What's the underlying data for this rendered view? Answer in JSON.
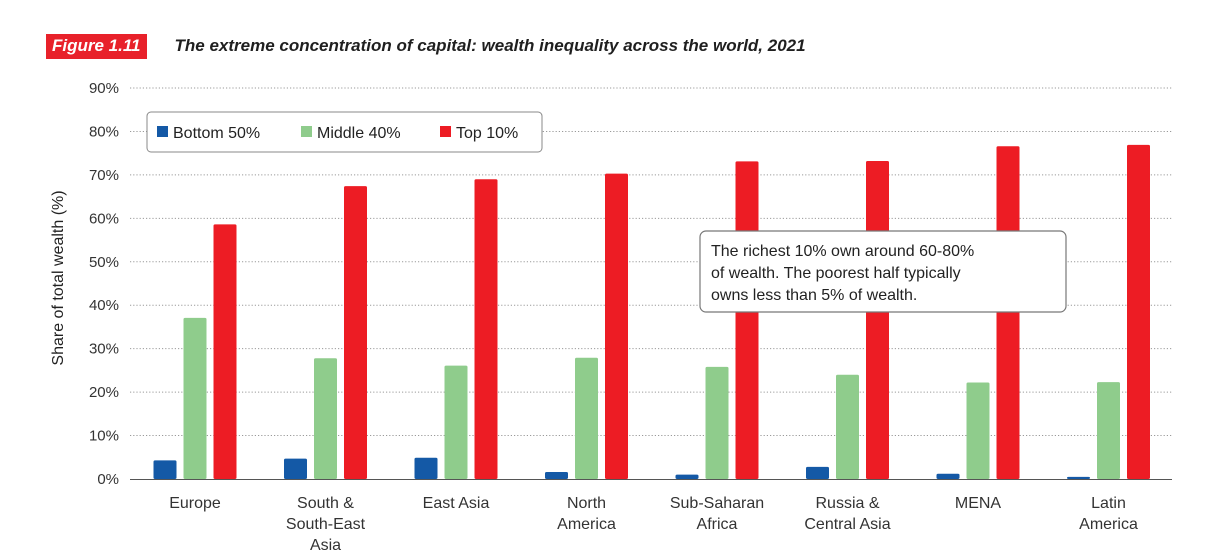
{
  "header": {
    "badge": "Figure 1.11",
    "title": "The extreme concentration of capital: wealth inequality across the world, 2021"
  },
  "colors": {
    "bottom50": "#1459a6",
    "middle40": "#8fcc8c",
    "top10": "#ed1c24",
    "badge": "#e8212a"
  },
  "chart_data": {
    "type": "bar",
    "title": "The extreme concentration of capital: wealth inequality across the world, 2021",
    "ylabel": "Share of total wealth (%)",
    "xlabel": "",
    "ylim": [
      0,
      90
    ],
    "yticks": [
      "0%",
      "10%",
      "20%",
      "30%",
      "40%",
      "50%",
      "60%",
      "70%",
      "80%",
      "90%"
    ],
    "grid": true,
    "legend_position": "top-left",
    "categories": [
      [
        "Europe"
      ],
      [
        "South &",
        "South-East",
        "Asia"
      ],
      [
        "East Asia"
      ],
      [
        "North",
        "America"
      ],
      [
        "Sub-Saharan",
        "Africa"
      ],
      [
        "Russia &",
        "Central Asia"
      ],
      [
        "MENA"
      ],
      [
        "Latin",
        "America"
      ]
    ],
    "series": [
      {
        "name": "Bottom 50%",
        "color": "#1459a6",
        "values": [
          4.3,
          4.7,
          4.9,
          1.6,
          1.0,
          2.8,
          1.2,
          0.5
        ]
      },
      {
        "name": "Middle 40%",
        "color": "#8fcc8c",
        "values": [
          37.1,
          27.8,
          26.1,
          27.9,
          25.8,
          24.0,
          22.2,
          22.3
        ]
      },
      {
        "name": "Top 10%",
        "color": "#ed1c24",
        "values": [
          58.6,
          67.4,
          69.0,
          70.3,
          73.1,
          73.2,
          76.6,
          76.9
        ]
      }
    ],
    "annotation": "The richest 10% own around 60-80% of wealth. The poorest half typically owns less than 5% of wealth."
  }
}
